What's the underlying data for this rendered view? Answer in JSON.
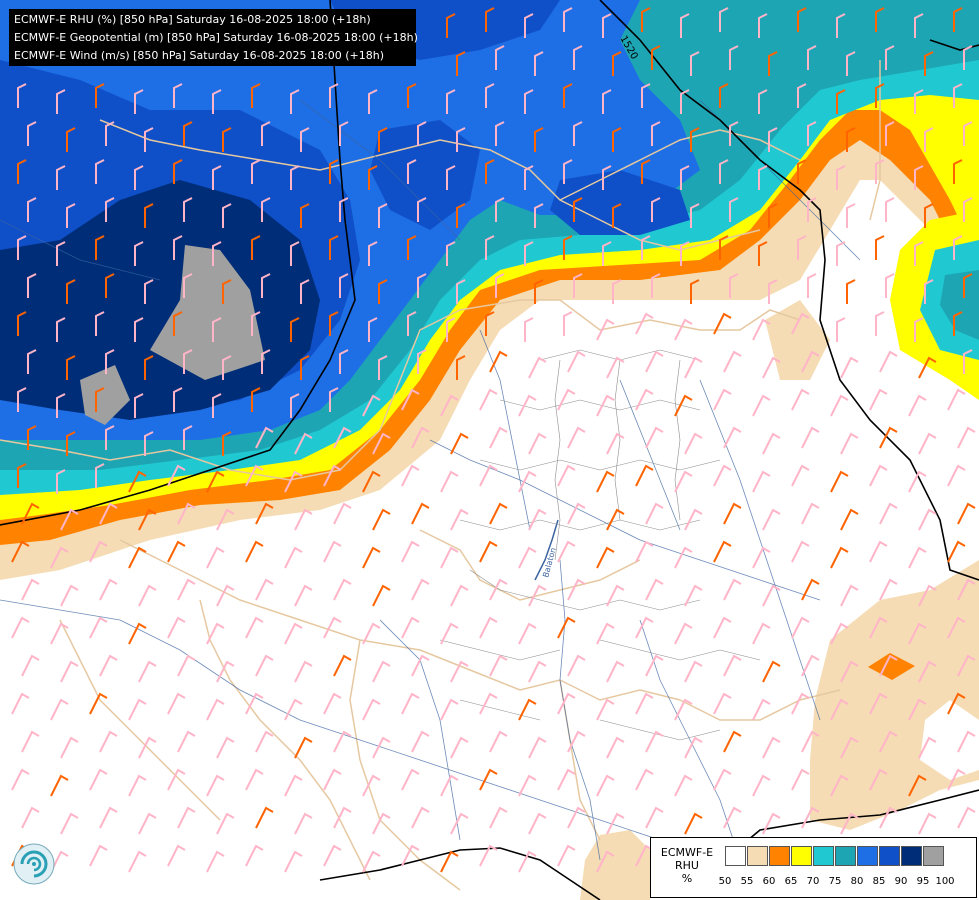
{
  "titles": [
    "ECMWF-E RHU (%) [850 hPa] Saturday 16-08-2025 18:00 (+18h)",
    "ECMWF-E Geopotential (m) [850 hPa] Saturday 16-08-2025 18:00 (+18h)",
    "ECMWF-E Wind (m/s) [850 hPa] Saturday 16-08-2025 18:00 (+18h)"
  ],
  "contour_label": "1520",
  "legend": {
    "model": "ECMWF-E",
    "variable": "RHU",
    "unit": "%",
    "ticks": [
      "50",
      "55",
      "60",
      "65",
      "70",
      "75",
      "80",
      "85",
      "90",
      "95",
      "100"
    ],
    "colors": [
      "#ffffff",
      "#f5dcb4",
      "#ff8200",
      "#ffff00",
      "#20c8d2",
      "#1ea5b4",
      "#1e6ee6",
      "#0f50c8",
      "#002d78",
      "#a0a0a0",
      "#646464"
    ]
  },
  "river_label": "Balaton"
}
